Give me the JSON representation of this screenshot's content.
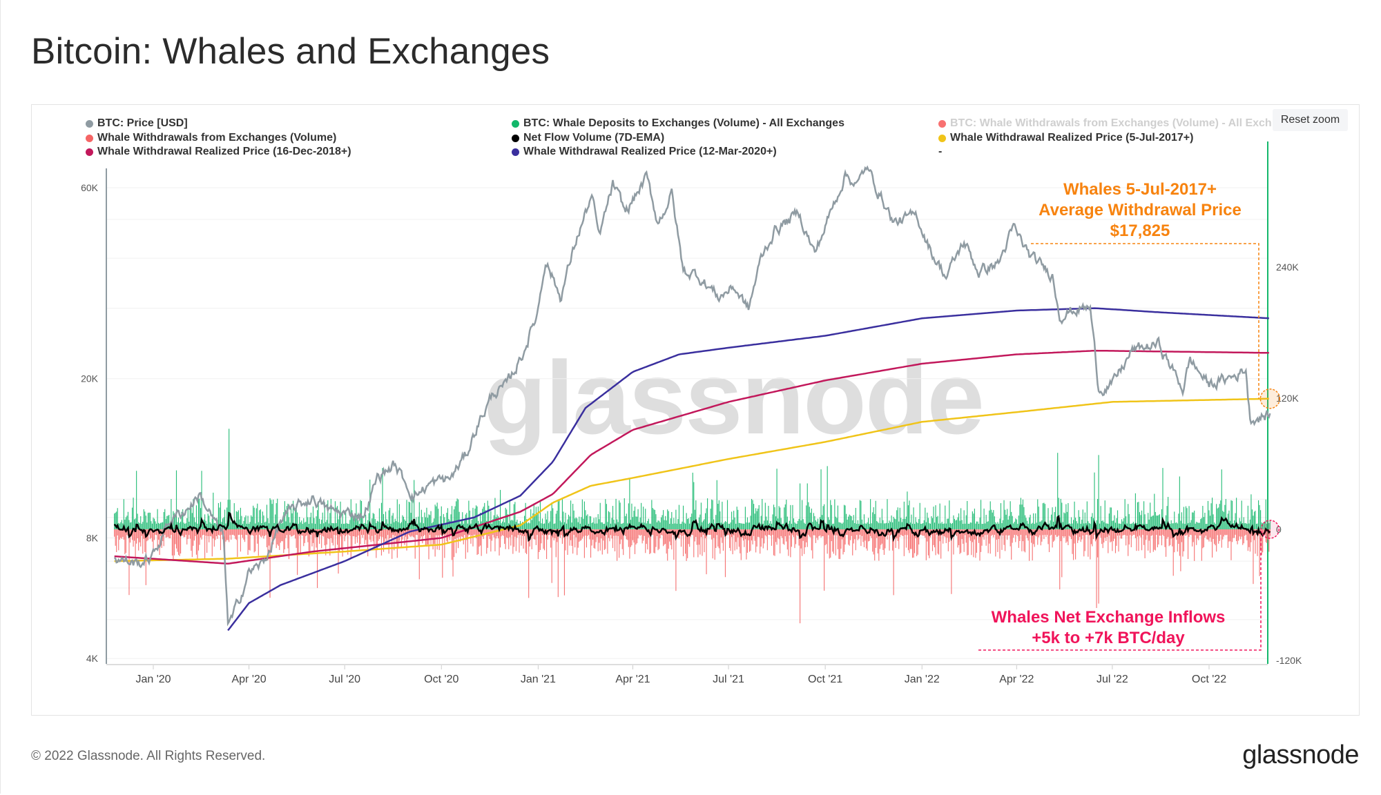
{
  "title": "Bitcoin: Whales and Exchanges",
  "reset_zoom": "Reset zoom",
  "watermark": "glassnode",
  "footer": {
    "copyright": "© 2022 Glassnode. All Rights Reserved.",
    "logo": "glassnode"
  },
  "legend": [
    {
      "label": "BTC: Price [USD]",
      "color": "#8f9ba2",
      "faded": false
    },
    {
      "label": "BTC: Whale Deposits to Exchanges (Volume) - All Exchanges [BTC]",
      "color": "#12b76a",
      "faded": false
    },
    {
      "label": "BTC: Whale Withdrawals from Exchanges (Volume) - All Exch",
      "color": "#f87171",
      "faded": true
    },
    {
      "label": "Whale Withdrawals from Exchanges (Volume)",
      "color": "#f56565",
      "faded": false
    },
    {
      "label": "Net Flow Volume (7D-EMA)",
      "color": "#000000",
      "faded": false
    },
    {
      "label": "Whale Withdrawal Realized Price (5-Jul-2017+)",
      "color": "#f0c419",
      "faded": false
    },
    {
      "label": "Whale Withdrawal Realized Price (16-Dec-2018+)",
      "color": "#c2185b",
      "faded": false
    },
    {
      "label": "Whale Withdrawal Realized Price (12-Mar-2020+)",
      "color": "#3a2f9e",
      "faded": false
    },
    {
      "label": "-",
      "color": "",
      "faded": false
    }
  ],
  "annotations": {
    "orange": [
      "Whales 5-Jul-2017+",
      "Average Withdrawal Price",
      "$17,825"
    ],
    "pink": [
      "Whales Net Exchange Inflows",
      "+5k to +7k BTC/day"
    ],
    "orange_color": "#f7830f",
    "pink_color": "#f0145a"
  },
  "chart_data": {
    "type": "line",
    "title": "Bitcoin: Whales and Exchanges",
    "x_ticks": [
      "Jan '20",
      "Apr '20",
      "Jul '20",
      "Oct '20",
      "Jan '21",
      "Apr '21",
      "Jul '21",
      "Oct '21",
      "Jan '22",
      "Apr '22",
      "Jul '22",
      "Oct '22"
    ],
    "x_tick_dates": [
      "2020-01-01",
      "2020-04-01",
      "2020-07-01",
      "2020-10-01",
      "2021-01-01",
      "2021-04-01",
      "2021-07-01",
      "2021-10-01",
      "2022-01-01",
      "2022-04-01",
      "2022-07-01",
      "2022-10-01"
    ],
    "xlim": [
      "2019-11-25",
      "2022-11-28"
    ],
    "y_left": {
      "scale": "log",
      "ticks": [
        "60K",
        "20K",
        "8K",
        "4K"
      ],
      "tick_values": [
        60000,
        20000,
        8000,
        4000
      ],
      "range": [
        4000,
        68000
      ]
    },
    "y_right": {
      "scale": "linear",
      "ticks": [
        "240K",
        "120K",
        "0",
        "-120K"
      ],
      "tick_values": [
        240000,
        120000,
        0,
        -120000
      ],
      "range": [
        -120000,
        300000
      ]
    },
    "grid": true,
    "legend_position": "top",
    "series": [
      {
        "name": "BTC: Price [USD]",
        "axis": "left",
        "color": "#8f9ba2",
        "points": [
          [
            "2019-11-25",
            7100
          ],
          [
            "2019-12-18",
            6900
          ],
          [
            "2020-01-01",
            7200
          ],
          [
            "2020-01-15",
            8800
          ],
          [
            "2020-02-01",
            9400
          ],
          [
            "2020-02-14",
            10300
          ],
          [
            "2020-03-01",
            8600
          ],
          [
            "2020-03-08",
            8000
          ],
          [
            "2020-03-12",
            4900
          ],
          [
            "2020-03-16",
            5000
          ],
          [
            "2020-04-01",
            6600
          ],
          [
            "2020-04-15",
            6900
          ],
          [
            "2020-05-01",
            8800
          ],
          [
            "2020-05-15",
            9500
          ],
          [
            "2020-06-01",
            10100
          ],
          [
            "2020-06-15",
            9400
          ],
          [
            "2020-07-01",
            9200
          ],
          [
            "2020-07-20",
            9200
          ],
          [
            "2020-08-01",
            11300
          ],
          [
            "2020-08-17",
            12200
          ],
          [
            "2020-09-05",
            10200
          ],
          [
            "2020-09-20",
            10900
          ],
          [
            "2020-10-10",
            11300
          ],
          [
            "2020-10-25",
            13000
          ],
          [
            "2020-11-05",
            15500
          ],
          [
            "2020-11-20",
            18500
          ],
          [
            "2020-12-01",
            19000
          ],
          [
            "2020-12-17",
            23000
          ],
          [
            "2020-12-31",
            29000
          ],
          [
            "2021-01-08",
            40000
          ],
          [
            "2021-01-22",
            32000
          ],
          [
            "2021-02-08",
            46000
          ],
          [
            "2021-02-21",
            57000
          ],
          [
            "2021-02-28",
            45000
          ],
          [
            "2021-03-13",
            61000
          ],
          [
            "2021-03-25",
            52000
          ],
          [
            "2021-04-14",
            63500
          ],
          [
            "2021-04-25",
            49000
          ],
          [
            "2021-05-08",
            58000
          ],
          [
            "2021-05-19",
            37000
          ],
          [
            "2021-06-01",
            36500
          ],
          [
            "2021-06-22",
            32000
          ],
          [
            "2021-07-06",
            34000
          ],
          [
            "2021-07-20",
            29800
          ],
          [
            "2021-08-01",
            40000
          ],
          [
            "2021-08-14",
            47000
          ],
          [
            "2021-09-06",
            52000
          ],
          [
            "2021-09-21",
            41000
          ],
          [
            "2021-10-01",
            48000
          ],
          [
            "2021-10-20",
            65000
          ],
          [
            "2021-11-01",
            61000
          ],
          [
            "2021-11-09",
            67500
          ],
          [
            "2021-11-28",
            54000
          ],
          [
            "2021-12-05",
            49000
          ],
          [
            "2021-12-27",
            51000
          ],
          [
            "2022-01-10",
            41500
          ],
          [
            "2022-01-24",
            36000
          ],
          [
            "2022-02-10",
            44000
          ],
          [
            "2022-02-24",
            37000
          ],
          [
            "2022-03-15",
            39000
          ],
          [
            "2022-03-29",
            47500
          ],
          [
            "2022-04-15",
            40000
          ],
          [
            "2022-05-05",
            36500
          ],
          [
            "2022-05-12",
            29000
          ],
          [
            "2022-06-01",
            30000
          ],
          [
            "2022-06-10",
            30000
          ],
          [
            "2022-06-18",
            19000
          ],
          [
            "2022-07-01",
            19300
          ],
          [
            "2022-07-20",
            23500
          ],
          [
            "2022-08-14",
            24400
          ],
          [
            "2022-09-06",
            18900
          ],
          [
            "2022-09-13",
            22300
          ],
          [
            "2022-10-01",
            19300
          ],
          [
            "2022-10-25",
            20300
          ],
          [
            "2022-11-05",
            21200
          ],
          [
            "2022-11-09",
            15900
          ],
          [
            "2022-11-28",
            16200
          ]
        ]
      },
      {
        "name": "Whale Withdrawal Realized Price (5-Jul-2017+)",
        "axis": "left",
        "color": "#f0c419",
        "points": [
          [
            "2019-11-25",
            7000
          ],
          [
            "2020-03-12",
            7100
          ],
          [
            "2020-07-01",
            7400
          ],
          [
            "2020-10-01",
            7700
          ],
          [
            "2020-12-15",
            8600
          ],
          [
            "2021-01-15",
            9800
          ],
          [
            "2021-02-20",
            10800
          ],
          [
            "2021-04-01",
            11300
          ],
          [
            "2021-07-01",
            12600
          ],
          [
            "2021-10-01",
            13900
          ],
          [
            "2022-01-01",
            15600
          ],
          [
            "2022-04-01",
            16500
          ],
          [
            "2022-07-01",
            17500
          ],
          [
            "2022-11-28",
            17825
          ]
        ]
      },
      {
        "name": "Whale Withdrawal Realized Price (16-Dec-2018+)",
        "axis": "left",
        "color": "#c2185b",
        "points": [
          [
            "2019-11-25",
            7200
          ],
          [
            "2020-03-12",
            6900
          ],
          [
            "2020-06-01",
            7400
          ],
          [
            "2020-10-01",
            8000
          ],
          [
            "2020-12-15",
            9300
          ],
          [
            "2021-01-15",
            10300
          ],
          [
            "2021-02-20",
            12900
          ],
          [
            "2021-04-01",
            14900
          ],
          [
            "2021-07-01",
            17500
          ],
          [
            "2021-10-01",
            19800
          ],
          [
            "2022-01-01",
            21800
          ],
          [
            "2022-04-01",
            23000
          ],
          [
            "2022-06-15",
            23500
          ],
          [
            "2022-11-28",
            23200
          ]
        ]
      },
      {
        "name": "Whale Withdrawal Realized Price (12-Mar-2020+)",
        "axis": "left",
        "color": "#3a2f9e",
        "points": [
          [
            "2020-03-12",
            4700
          ],
          [
            "2020-04-01",
            5500
          ],
          [
            "2020-05-01",
            6100
          ],
          [
            "2020-07-01",
            7000
          ],
          [
            "2020-09-01",
            8300
          ],
          [
            "2020-11-01",
            9000
          ],
          [
            "2020-12-15",
            10200
          ],
          [
            "2021-01-15",
            12400
          ],
          [
            "2021-02-15",
            16900
          ],
          [
            "2021-04-01",
            20800
          ],
          [
            "2021-05-15",
            23000
          ],
          [
            "2021-07-01",
            23900
          ],
          [
            "2021-10-01",
            25600
          ],
          [
            "2022-01-01",
            28300
          ],
          [
            "2022-04-01",
            29600
          ],
          [
            "2022-06-15",
            30000
          ],
          [
            "2022-08-15",
            29300
          ],
          [
            "2022-11-28",
            28300
          ]
        ]
      },
      {
        "name": "BTC: Whale Deposits to Exchanges (Volume) - All Exchanges [BTC]",
        "axis": "right",
        "type": "bar",
        "color": "#12b76a",
        "typical_range": [
          5000,
          20000
        ],
        "spikes": [
          [
            "2020-03-13",
            92000
          ],
          [
            "2021-06-20",
            45000
          ],
          [
            "2021-09-07",
            42000
          ],
          [
            "2022-05-10",
            70000
          ],
          [
            "2022-06-14",
            52000
          ],
          [
            "2022-06-18",
            68000
          ],
          [
            "2022-11-10",
            32000
          ]
        ]
      },
      {
        "name": "Whale Withdrawals from Exchanges (Volume)",
        "axis": "right",
        "type": "bar",
        "color": "#f56565",
        "typical_range": [
          -20000,
          -5000
        ],
        "spikes": [
          [
            "2021-01-20",
            -62000
          ],
          [
            "2021-09-07",
            -86000
          ],
          [
            "2022-05-12",
            -55000
          ],
          [
            "2022-06-16",
            -72000
          ],
          [
            "2022-06-18",
            -68000
          ],
          [
            "2022-11-12",
            -50000
          ]
        ]
      },
      {
        "name": "Net Flow Volume (7D-EMA)",
        "axis": "right",
        "color": "#000000"
      }
    ],
    "reference_values": {
      "orange_price": 17825
    }
  }
}
